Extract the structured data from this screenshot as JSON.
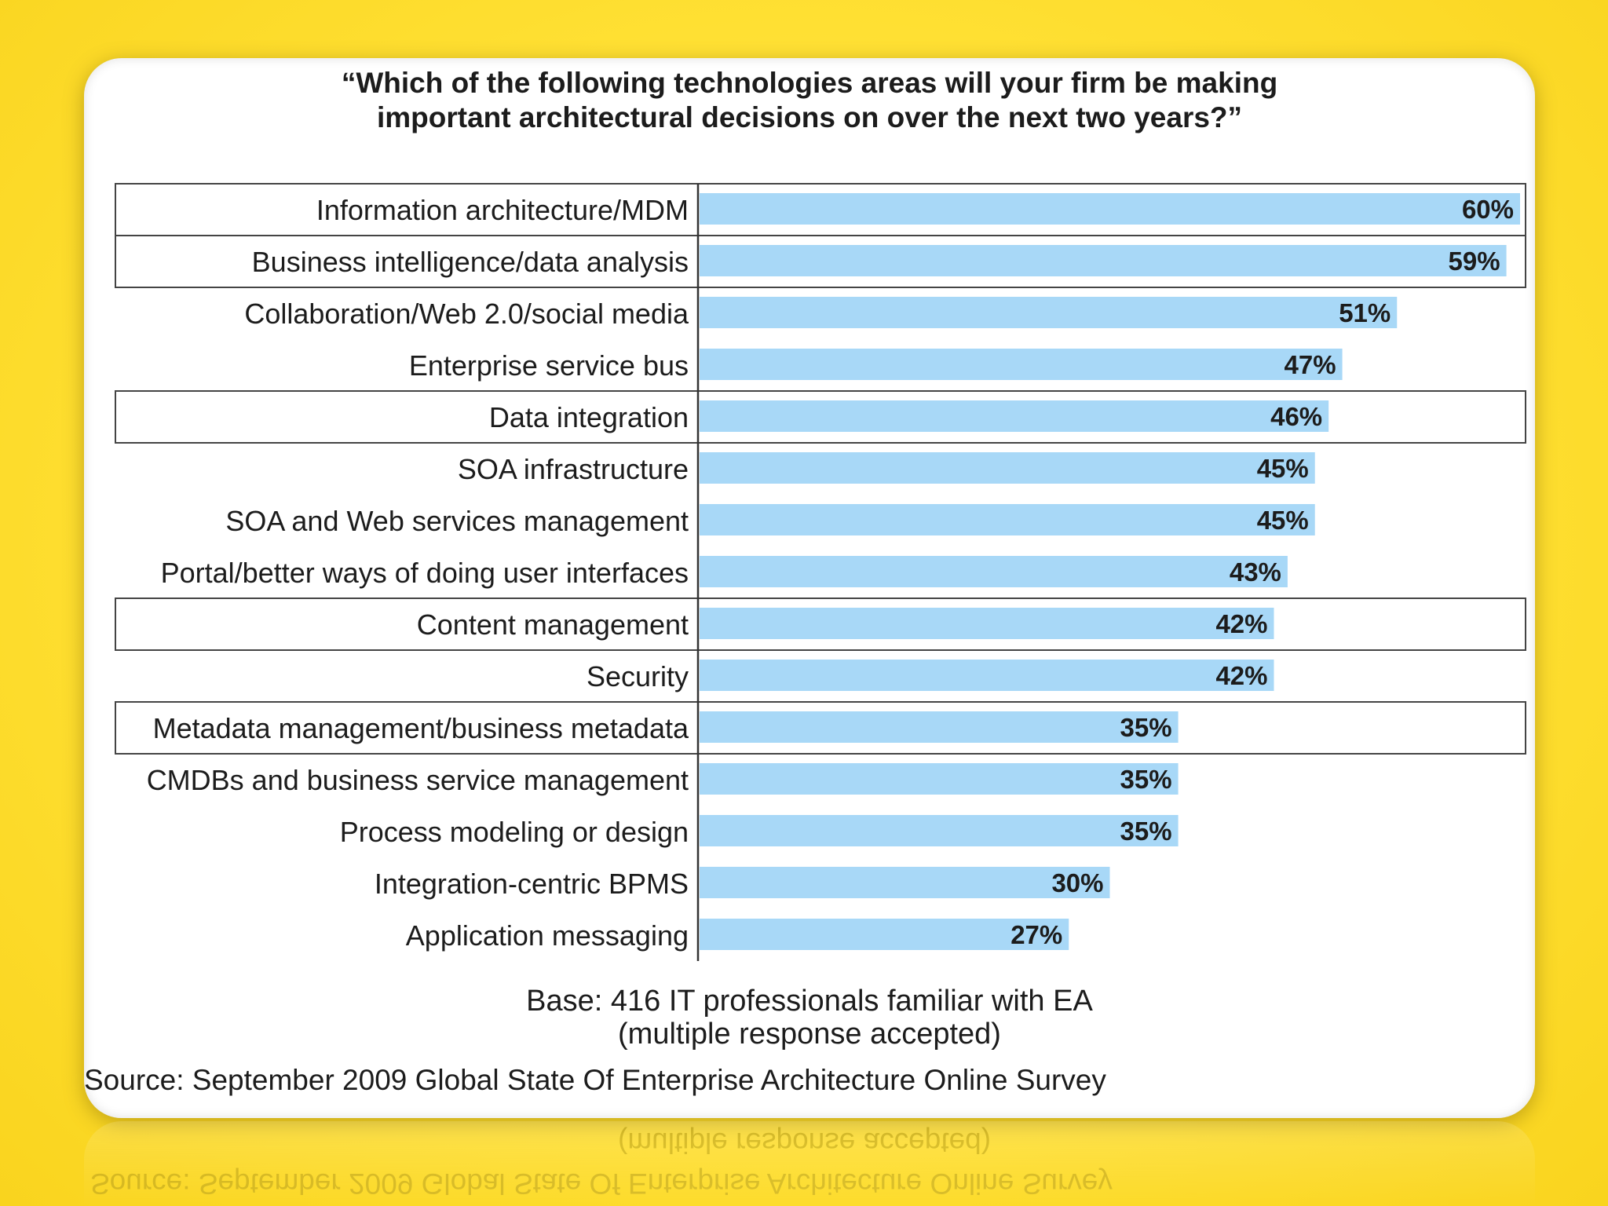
{
  "chart_data": {
    "type": "bar",
    "orientation": "horizontal",
    "title": "“Which of the following technologies areas will your firm be making\nimportant architectural decisions on over the next two years?”",
    "categories": [
      "Information architecture/MDM",
      "Business intelligence/data analysis",
      "Collaboration/Web 2.0/social media",
      "Enterprise service bus",
      "Data integration",
      "SOA infrastructure",
      "SOA and Web services management",
      "Portal/better ways of doing user interfaces",
      "Content management",
      "Security",
      "Metadata management/business metadata",
      "CMDBs and business service management",
      "Process modeling or design",
      "Integration-centric BPMS",
      "Application messaging"
    ],
    "values": [
      60,
      59,
      51,
      47,
      46,
      45,
      45,
      43,
      42,
      42,
      35,
      35,
      35,
      30,
      27
    ],
    "value_labels": [
      "60%",
      "59%",
      "51%",
      "47%",
      "46%",
      "45%",
      "45%",
      "43%",
      "42%",
      "42%",
      "35%",
      "35%",
      "35%",
      "30%",
      "27%"
    ],
    "highlighted_rows": [
      "Information architecture/MDM",
      "Business intelligence/data analysis",
      "Data integration",
      "Content management",
      "Metadata management/business metadata"
    ],
    "unit": "%",
    "xlim": [
      0,
      60
    ],
    "grid": false,
    "legend": "none",
    "bar_color": "#a8d8f7"
  },
  "footnote": {
    "base_line1": "Base: 416 IT professionals familiar with EA",
    "base_line2": "(multiple response accepted)",
    "source": "Source: September 2009 Global State Of Enterprise Architecture Online Survey"
  },
  "colors": {
    "background": "#ffe033",
    "panel": "#ffffff",
    "bar": "#a8d8f7",
    "text": "#1c1c1c"
  }
}
